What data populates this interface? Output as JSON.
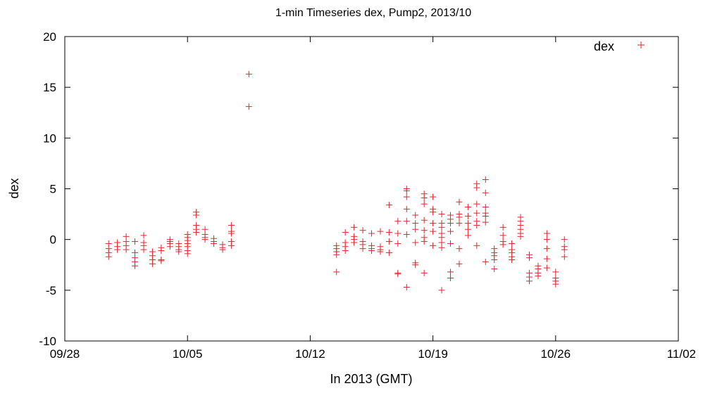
{
  "chart_data": {
    "type": "scatter",
    "title": "1-min Timeseries dex, Pump2, 2013/10",
    "xlabel": "In 2013 (GMT)",
    "ylabel": "dex",
    "x_axis_type": "date",
    "xlim": [
      "2013-09-28",
      "2013-11-02"
    ],
    "ylim": [
      -10,
      20
    ],
    "x_ticks": [
      "09/28",
      "10/05",
      "10/12",
      "10/19",
      "10/26",
      "11/02"
    ],
    "y_ticks": [
      -10,
      -5,
      0,
      5,
      10,
      15,
      20
    ],
    "grid": false,
    "legend_position": "top-right",
    "series": [
      {
        "name": "dex",
        "color": "#e8242c",
        "marker": "plus",
        "points": [
          [
            "2013-09-30 12:00",
            -0.4
          ],
          [
            "2013-09-30 12:00",
            -0.9
          ],
          [
            "2013-09-30 12:00",
            -1.3
          ],
          [
            "2013-09-30 12:00",
            -1.7
          ],
          [
            "2013-10-01 00:00",
            -0.3
          ],
          [
            "2013-10-01 00:00",
            -0.7
          ],
          [
            "2013-10-01 00:00",
            -1.0
          ],
          [
            "2013-10-01 12:00",
            0.3
          ],
          [
            "2013-10-01 12:00",
            -0.2
          ],
          [
            "2013-10-01 12:00",
            -0.6
          ],
          [
            "2013-10-01 12:00",
            -1.0
          ],
          [
            "2013-10-02 00:00",
            -0.2
          ],
          [
            "2013-10-02 00:00",
            -1.3
          ],
          [
            "2013-10-02 00:00",
            -1.8
          ],
          [
            "2013-10-02 00:00",
            -2.2
          ],
          [
            "2013-10-02 00:00",
            -2.6
          ],
          [
            "2013-10-02 12:00",
            0.4
          ],
          [
            "2013-10-02 12:00",
            -0.3
          ],
          [
            "2013-10-02 12:00",
            -0.6
          ],
          [
            "2013-10-02 12:00",
            -1.0
          ],
          [
            "2013-10-03 00:00",
            -1.2
          ],
          [
            "2013-10-03 00:00",
            -1.6
          ],
          [
            "2013-10-03 00:00",
            -2.0
          ],
          [
            "2013-10-03 00:00",
            -2.4
          ],
          [
            "2013-10-03 12:00",
            -0.8
          ],
          [
            "2013-10-03 12:00",
            -1.1
          ],
          [
            "2013-10-03 12:00",
            -2.0
          ],
          [
            "2013-10-03 12:00",
            -2.1
          ],
          [
            "2013-10-04 00:00",
            0.0
          ],
          [
            "2013-10-04 00:00",
            -0.2
          ],
          [
            "2013-10-04 00:00",
            -0.4
          ],
          [
            "2013-10-04 00:00",
            -0.7
          ],
          [
            "2013-10-04 12:00",
            -0.4
          ],
          [
            "2013-10-04 12:00",
            -0.7
          ],
          [
            "2013-10-04 12:00",
            -1.0
          ],
          [
            "2013-10-04 12:00",
            -1.2
          ],
          [
            "2013-10-05 00:00",
            0.5
          ],
          [
            "2013-10-05 00:00",
            0.2
          ],
          [
            "2013-10-05 00:00",
            -0.1
          ],
          [
            "2013-10-05 00:00",
            -0.4
          ],
          [
            "2013-10-05 00:00",
            -0.7
          ],
          [
            "2013-10-05 00:00",
            -1.1
          ],
          [
            "2013-10-05 00:00",
            -1.4
          ],
          [
            "2013-10-05 12:00",
            2.7
          ],
          [
            "2013-10-05 12:00",
            2.4
          ],
          [
            "2013-10-05 12:00",
            1.4
          ],
          [
            "2013-10-05 12:00",
            1.0
          ],
          [
            "2013-10-05 12:00",
            0.7
          ],
          [
            "2013-10-06 00:00",
            1.0
          ],
          [
            "2013-10-06 00:00",
            0.5
          ],
          [
            "2013-10-06 00:00",
            0.2
          ],
          [
            "2013-10-06 00:00",
            0.0
          ],
          [
            "2013-10-06 12:00",
            0.1
          ],
          [
            "2013-10-06 12:00",
            -0.2
          ],
          [
            "2013-10-06 12:00",
            -0.4
          ],
          [
            "2013-10-07 00:00",
            -0.5
          ],
          [
            "2013-10-07 00:00",
            -0.8
          ],
          [
            "2013-10-07 00:00",
            -1.0
          ],
          [
            "2013-10-07 12:00",
            1.4
          ],
          [
            "2013-10-07 12:00",
            0.8
          ],
          [
            "2013-10-07 12:00",
            0.6
          ],
          [
            "2013-10-07 12:00",
            -0.2
          ],
          [
            "2013-10-07 12:00",
            -0.6
          ],
          [
            "2013-10-08 12:00",
            16.3
          ],
          [
            "2013-10-08 12:00",
            13.1
          ],
          [
            "2013-10-13 12:00",
            -0.6
          ],
          [
            "2013-10-13 12:00",
            -0.9
          ],
          [
            "2013-10-13 12:00",
            -1.2
          ],
          [
            "2013-10-13 12:00",
            -1.5
          ],
          [
            "2013-10-13 12:00",
            -3.2
          ],
          [
            "2013-10-14 00:00",
            0.7
          ],
          [
            "2013-10-14 00:00",
            -0.3
          ],
          [
            "2013-10-14 00:00",
            -0.7
          ],
          [
            "2013-10-14 00:00",
            -1.1
          ],
          [
            "2013-10-14 12:00",
            1.2
          ],
          [
            "2013-10-14 12:00",
            0.3
          ],
          [
            "2013-10-14 12:00",
            0.0
          ],
          [
            "2013-10-14 12:00",
            -0.3
          ],
          [
            "2013-10-15 00:00",
            0.9
          ],
          [
            "2013-10-15 00:00",
            -0.2
          ],
          [
            "2013-10-15 00:00",
            -0.5
          ],
          [
            "2013-10-15 00:00",
            -0.9
          ],
          [
            "2013-10-15 12:00",
            0.6
          ],
          [
            "2013-10-15 12:00",
            -0.6
          ],
          [
            "2013-10-15 12:00",
            -0.9
          ],
          [
            "2013-10-15 12:00",
            -1.1
          ],
          [
            "2013-10-16 00:00",
            0.8
          ],
          [
            "2013-10-16 00:00",
            -0.7
          ],
          [
            "2013-10-16 00:00",
            -1.0
          ],
          [
            "2013-10-16 00:00",
            -1.2
          ],
          [
            "2013-10-16 12:00",
            3.4
          ],
          [
            "2013-10-16 12:00",
            0.7
          ],
          [
            "2013-10-16 12:00",
            -0.2
          ],
          [
            "2013-10-16 12:00",
            -1.3
          ],
          [
            "2013-10-17 00:00",
            1.8
          ],
          [
            "2013-10-17 00:00",
            0.6
          ],
          [
            "2013-10-17 00:00",
            -0.4
          ],
          [
            "2013-10-17 00:00",
            -3.3
          ],
          [
            "2013-10-17 00:00",
            -3.4
          ],
          [
            "2013-10-17 12:00",
            5.0
          ],
          [
            "2013-10-17 12:00",
            4.8
          ],
          [
            "2013-10-17 12:00",
            4.2
          ],
          [
            "2013-10-17 12:00",
            3.0
          ],
          [
            "2013-10-17 12:00",
            1.8
          ],
          [
            "2013-10-17 12:00",
            0.5
          ],
          [
            "2013-10-17 12:00",
            -4.7
          ],
          [
            "2013-10-18 00:00",
            2.4
          ],
          [
            "2013-10-18 00:00",
            1.6
          ],
          [
            "2013-10-18 00:00",
            1.0
          ],
          [
            "2013-10-18 00:00",
            -0.3
          ],
          [
            "2013-10-18 00:00",
            -2.3
          ],
          [
            "2013-10-18 00:00",
            -2.5
          ],
          [
            "2013-10-18 12:00",
            4.5
          ],
          [
            "2013-10-18 12:00",
            4.1
          ],
          [
            "2013-10-18 12:00",
            3.5
          ],
          [
            "2013-10-18 12:00",
            1.9
          ],
          [
            "2013-10-18 12:00",
            0.9
          ],
          [
            "2013-10-18 12:00",
            0.2
          ],
          [
            "2013-10-18 12:00",
            -0.2
          ],
          [
            "2013-10-18 12:00",
            -3.3
          ],
          [
            "2013-10-19 00:00",
            4.2
          ],
          [
            "2013-10-19 00:00",
            3.0
          ],
          [
            "2013-10-19 00:00",
            2.7
          ],
          [
            "2013-10-19 00:00",
            1.6
          ],
          [
            "2013-10-19 00:00",
            0.8
          ],
          [
            "2013-10-19 00:00",
            -0.6
          ],
          [
            "2013-10-19 12:00",
            2.5
          ],
          [
            "2013-10-19 12:00",
            1.6
          ],
          [
            "2013-10-19 12:00",
            1.2
          ],
          [
            "2013-10-19 12:00",
            0.6
          ],
          [
            "2013-10-19 12:00",
            0.2
          ],
          [
            "2013-10-19 12:00",
            -0.3
          ],
          [
            "2013-10-19 12:00",
            -0.8
          ],
          [
            "2013-10-19 12:00",
            -5.0
          ],
          [
            "2013-10-20 00:00",
            2.4
          ],
          [
            "2013-10-20 00:00",
            2.0
          ],
          [
            "2013-10-20 00:00",
            1.6
          ],
          [
            "2013-10-20 00:00",
            0.8
          ],
          [
            "2013-10-20 00:00",
            -0.4
          ],
          [
            "2013-10-20 00:00",
            -3.2
          ],
          [
            "2013-10-20 00:00",
            -3.8
          ],
          [
            "2013-10-20 12:00",
            3.7
          ],
          [
            "2013-10-20 12:00",
            2.5
          ],
          [
            "2013-10-20 12:00",
            2.2
          ],
          [
            "2013-10-20 12:00",
            1.6
          ],
          [
            "2013-10-20 12:00",
            -0.9
          ],
          [
            "2013-10-20 12:00",
            -2.4
          ],
          [
            "2013-10-21 00:00",
            3.2
          ],
          [
            "2013-10-21 00:00",
            2.3
          ],
          [
            "2013-10-21 00:00",
            1.6
          ],
          [
            "2013-10-21 00:00",
            1.0
          ],
          [
            "2013-10-21 00:00",
            0.4
          ],
          [
            "2013-10-21 12:00",
            5.5
          ],
          [
            "2013-10-21 12:00",
            5.1
          ],
          [
            "2013-10-21 12:00",
            3.5
          ],
          [
            "2013-10-21 12:00",
            2.6
          ],
          [
            "2013-10-21 12:00",
            1.8
          ],
          [
            "2013-10-21 12:00",
            1.4
          ],
          [
            "2013-10-21 12:00",
            -0.6
          ],
          [
            "2013-10-22 00:00",
            5.9
          ],
          [
            "2013-10-22 00:00",
            4.6
          ],
          [
            "2013-10-22 00:00",
            3.2
          ],
          [
            "2013-10-22 00:00",
            2.6
          ],
          [
            "2013-10-22 00:00",
            2.3
          ],
          [
            "2013-10-22 00:00",
            1.7
          ],
          [
            "2013-10-22 00:00",
            -2.2
          ],
          [
            "2013-10-22 12:00",
            -0.9
          ],
          [
            "2013-10-22 12:00",
            -1.3
          ],
          [
            "2013-10-22 12:00",
            -1.6
          ],
          [
            "2013-10-22 12:00",
            -2.0
          ],
          [
            "2013-10-22 12:00",
            -2.9
          ],
          [
            "2013-10-23 00:00",
            1.2
          ],
          [
            "2013-10-23 00:00",
            0.4
          ],
          [
            "2013-10-23 00:00",
            -0.2
          ],
          [
            "2013-10-23 00:00",
            -0.5
          ],
          [
            "2013-10-23 12:00",
            -0.4
          ],
          [
            "2013-10-23 12:00",
            -1.0
          ],
          [
            "2013-10-23 12:00",
            -1.3
          ],
          [
            "2013-10-23 12:00",
            -1.7
          ],
          [
            "2013-10-23 12:00",
            -2.0
          ],
          [
            "2013-10-24 00:00",
            2.2
          ],
          [
            "2013-10-24 00:00",
            1.8
          ],
          [
            "2013-10-24 00:00",
            1.4
          ],
          [
            "2013-10-24 00:00",
            1.0
          ],
          [
            "2013-10-24 00:00",
            0.6
          ],
          [
            "2013-10-24 00:00",
            0.3
          ],
          [
            "2013-10-24 12:00",
            -1.5
          ],
          [
            "2013-10-24 12:00",
            -1.8
          ],
          [
            "2013-10-24 12:00",
            -3.3
          ],
          [
            "2013-10-24 12:00",
            -3.7
          ],
          [
            "2013-10-24 12:00",
            -4.1
          ],
          [
            "2013-10-25 00:00",
            -2.6
          ],
          [
            "2013-10-25 00:00",
            -2.9
          ],
          [
            "2013-10-25 00:00",
            -3.3
          ],
          [
            "2013-10-25 00:00",
            -3.6
          ],
          [
            "2013-10-25 12:00",
            0.6
          ],
          [
            "2013-10-25 12:00",
            0.0
          ],
          [
            "2013-10-25 12:00",
            -0.9
          ],
          [
            "2013-10-25 12:00",
            -1.9
          ],
          [
            "2013-10-25 12:00",
            -2.8
          ],
          [
            "2013-10-26 00:00",
            -3.2
          ],
          [
            "2013-10-26 00:00",
            -3.8
          ],
          [
            "2013-10-26 00:00",
            -4.1
          ],
          [
            "2013-10-26 00:00",
            -4.4
          ],
          [
            "2013-10-26 12:00",
            0.0
          ],
          [
            "2013-10-26 12:00",
            -0.7
          ],
          [
            "2013-10-26 12:00",
            -1.0
          ],
          [
            "2013-10-26 12:00",
            -1.7
          ]
        ]
      }
    ]
  }
}
